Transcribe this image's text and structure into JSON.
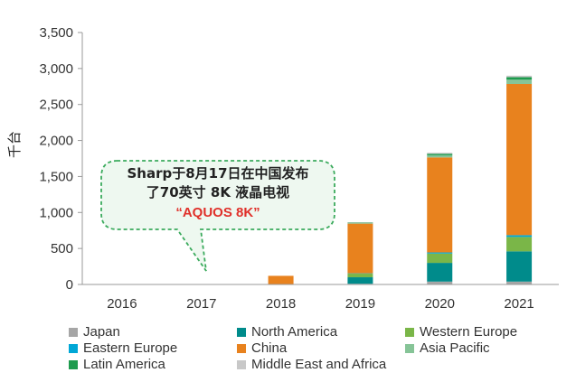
{
  "chart_data": {
    "type": "bar",
    "stacked": true,
    "categories": [
      "2016",
      "2017",
      "2018",
      "2019",
      "2020",
      "2021"
    ],
    "ylabel": "千台",
    "ylim": [
      0,
      3500
    ],
    "yticks": [
      "0",
      "500",
      "1,000",
      "1,500",
      "2,000",
      "2,500",
      "3,000",
      "3,500"
    ],
    "ytick_values": [
      0,
      500,
      1000,
      1500,
      2000,
      2500,
      3000,
      3500
    ],
    "grid": false,
    "legend_position": "bottom",
    "series": [
      {
        "name": "Japan",
        "color": "#a6a6a6",
        "values": [
          0,
          0,
          0,
          10,
          40,
          40
        ]
      },
      {
        "name": "North America",
        "color": "#008b8b",
        "values": [
          0,
          0,
          0,
          90,
          260,
          420
        ]
      },
      {
        "name": "Western Europe",
        "color": "#7ab648",
        "values": [
          0,
          0,
          0,
          50,
          130,
          200
        ]
      },
      {
        "name": "Eastern Europe",
        "color": "#00a7d6",
        "values": [
          0,
          0,
          0,
          5,
          15,
          25
        ]
      },
      {
        "name": "China",
        "color": "#e8821e",
        "values": [
          0,
          0,
          120,
          690,
          1320,
          2100
        ]
      },
      {
        "name": "Asia Pacific",
        "color": "#86c497",
        "values": [
          0,
          0,
          0,
          10,
          30,
          60
        ]
      },
      {
        "name": "Latin America",
        "color": "#1e9b4e",
        "values": [
          0,
          0,
          0,
          5,
          20,
          35
        ]
      },
      {
        "name": "Middle East and Africa",
        "color": "#c8c8c8",
        "values": [
          0,
          0,
          0,
          5,
          15,
          20
        ]
      }
    ],
    "annotation": {
      "lines": [
        "Sharp于8月17日在中国发布",
        "了70英寸 8K 液晶电视"
      ],
      "highlight": "“AQUOS 8K”",
      "points_to": "2017",
      "border_color": "#3aaa5c",
      "fill_color": "#eef8f0",
      "highlight_color": "#e0302a"
    }
  }
}
